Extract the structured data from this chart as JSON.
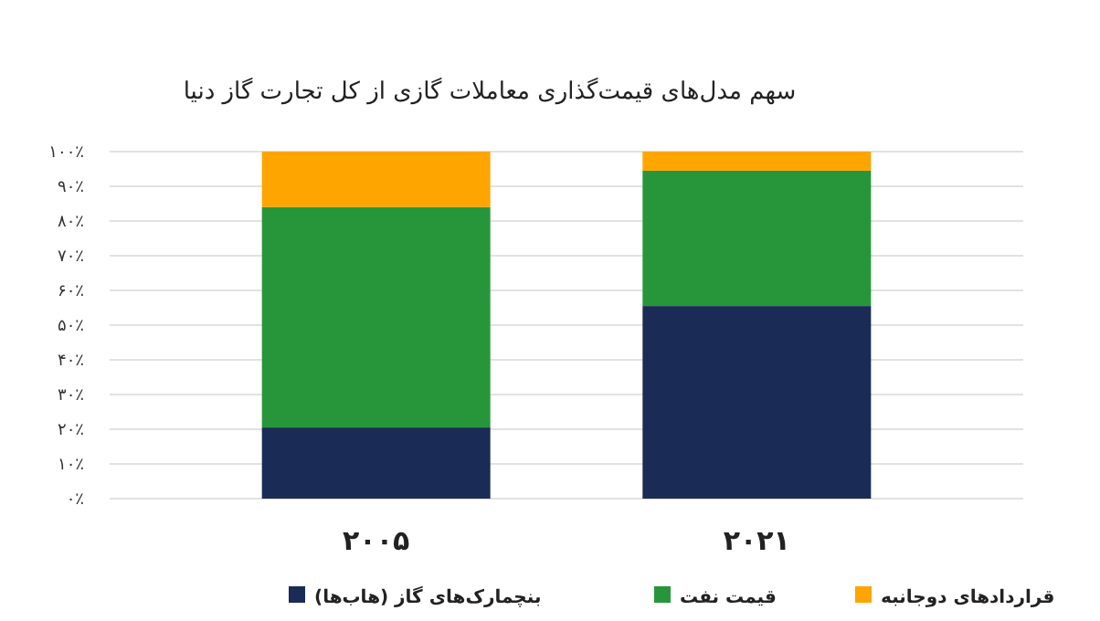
{
  "chart_data": {
    "type": "bar",
    "title": "سهم مدل‌های قیمت‌گذاری معاملات گازی از کل تجارت گاز دنیا",
    "categories": [
      "۲۰۰۵",
      "۲۰۲۱"
    ],
    "stacked": true,
    "series": [
      {
        "name": "بنچمارک‌های گاز (هاب‌ها)",
        "color": "#1a2b55",
        "values": [
          20.5,
          55.5
        ]
      },
      {
        "name": "قیمت نفت",
        "color": "#27963a",
        "values": [
          63.5,
          39
        ]
      },
      {
        "name": "قراردادهای دوجانبه",
        "color": "#ffa500",
        "values": [
          16,
          5.5
        ]
      }
    ],
    "ylim": [
      0,
      100
    ],
    "yticks": [
      {
        "value": 0,
        "label": "۰٪"
      },
      {
        "value": 10,
        "label": "۱۰٪"
      },
      {
        "value": 20,
        "label": "۲۰٪"
      },
      {
        "value": 30,
        "label": "۳۰٪"
      },
      {
        "value": 40,
        "label": "۴۰٪"
      },
      {
        "value": 50,
        "label": "۵۰٪"
      },
      {
        "value": 60,
        "label": "۶۰٪"
      },
      {
        "value": 70,
        "label": "۷۰٪"
      },
      {
        "value": 80,
        "label": "۸۰٪"
      },
      {
        "value": 90,
        "label": "۹۰٪"
      },
      {
        "value": 100,
        "label": "۱۰۰٪"
      }
    ],
    "grid": "y",
    "legend": "bottom"
  }
}
